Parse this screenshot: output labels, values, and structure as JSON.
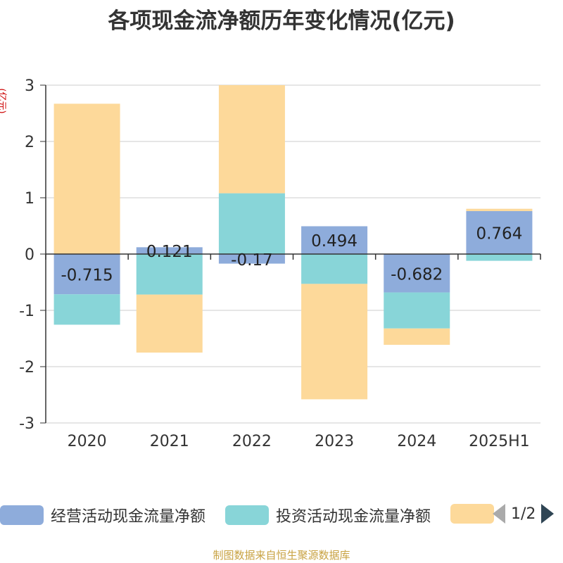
{
  "title": "各项现金流净额历年变化情况(亿元)",
  "unit": "(亿元)",
  "footer": "制图数据来自恒生聚源数据库",
  "pagination": {
    "text": "1/2"
  },
  "chart_data": {
    "type": "bar",
    "stacked": true,
    "categories": [
      "2020",
      "2021",
      "2022",
      "2023",
      "2024",
      "2025H1"
    ],
    "ylim": [
      -3,
      3
    ],
    "yticks": [
      3,
      2,
      1,
      0,
      -1,
      -2,
      -3
    ],
    "grid": true,
    "series": [
      {
        "name": "经营活动现金流量净额",
        "color": "#8eacdb",
        "values": [
          -0.715,
          0.121,
          -0.17,
          0.494,
          -0.682,
          0.764
        ]
      },
      {
        "name": "投资活动现金流量净额",
        "color": "#88d5d8",
        "values": [
          -0.54,
          -0.72,
          1.08,
          -0.53,
          -0.64,
          -0.12
        ]
      },
      {
        "name": "",
        "color": "#fdd99a",
        "values": [
          2.67,
          -1.03,
          1.92,
          -2.05,
          -0.29,
          0.04
        ]
      }
    ],
    "data_labels": [
      "-0.715",
      "0.121",
      "-0.17",
      "0.494",
      "-0.682",
      "0.764"
    ],
    "legend_position": "bottom"
  }
}
